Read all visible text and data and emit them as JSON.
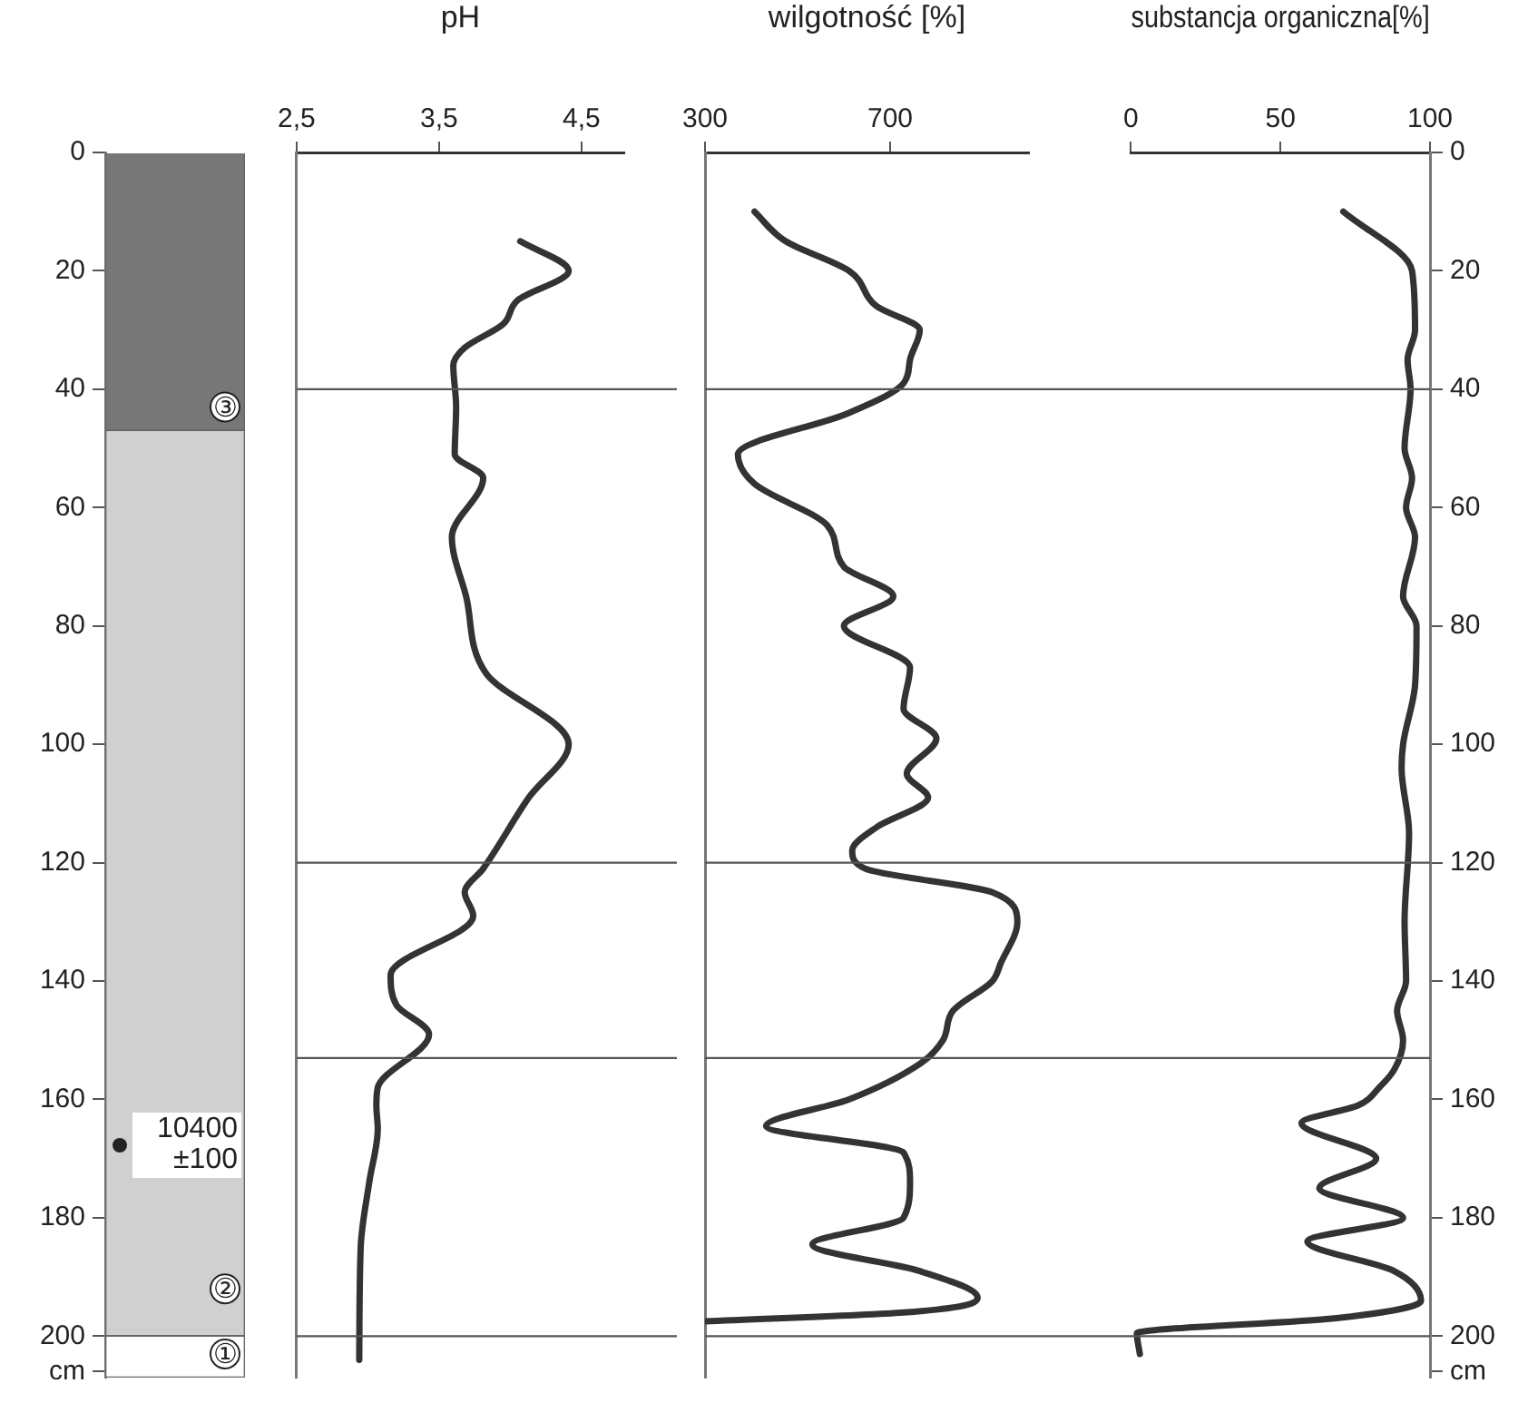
{
  "chart_data": [
    {
      "type": "bar",
      "stacked": true,
      "categories": [
        null
      ],
      "tick_labels": "y",
      "series": [
        {
          "color": "#777777",
          "values": [
            47
          ]
        },
        {
          "color": "#d0d0d0",
          "values": [
            153
          ]
        },
        {
          "color": "#ffffff",
          "values": [
            7
          ]
        }
      ],
      "ylim": [
        207,
        0
      ],
      "yticks": [
        0,
        20,
        40,
        60,
        80,
        100,
        120,
        140,
        160,
        180,
        200,
        {
          "value": 206,
          "label": "cm"
        }
      ],
      "annotations": [
        {
          "text": "③",
          "y": 43
        },
        "10400 ±100",
        {
          "text": "②",
          "y": 192
        },
        {
          "text": "①",
          "y": 203
        }
      ]
    },
    {
      "type": "line",
      "xlabel": "pH",
      "tick_labels": "x",
      "xlim": [
        2.5,
        4.8
      ],
      "xticks": [
        {
          "value": 2.5,
          "label": "2,5"
        },
        {
          "value": 3.5,
          "label": "3,5"
        },
        {
          "value": 4.5,
          "label": "4,5"
        }
      ],
      "ylim": [
        207,
        0
      ],
      "series": [
        {
          "color": "#333333",
          "x": [
            4.07,
            4.41,
            4.05,
            3.95,
            3.68,
            3.6,
            3.62,
            3.61,
            3.81,
            3.59,
            3.69,
            3.83,
            4.41,
            4.13,
            3.81,
            3.68,
            3.74,
            3.16,
            3.2,
            3.43,
            3.07,
            3.06,
            3.07,
            3.01,
            2.95,
            2.94
          ],
          "values": [
            15,
            20,
            25,
            29,
            33,
            36,
            43,
            51,
            55,
            65,
            75,
            88,
            100,
            109,
            121,
            125,
            129,
            139,
            144,
            149,
            158,
            161,
            165,
            174,
            185,
            204
          ]
        }
      ],
      "ref_lines": [
        {
          "axis": "y",
          "value": 40
        },
        {
          "axis": "y",
          "value": 120
        },
        {
          "axis": "y",
          "value": 153
        },
        {
          "axis": "y",
          "value": 200
        }
      ]
    },
    {
      "type": "line",
      "xlabel": "wilgotność [%]",
      "tick_labels": "x",
      "xlim": [
        300,
        1000
      ],
      "xticks": [
        300,
        700
      ],
      "ylim": [
        207,
        0
      ],
      "series": [
        {
          "color": "#333333",
          "x": [
            407,
            474,
            611,
            671,
            764,
            743,
            729,
            611,
            371,
            407,
            564,
            600,
            707,
            600,
            743,
            729,
            800,
            736,
            782,
            671,
            618,
            646,
            921,
            975,
            939,
            921,
            836,
            814,
            764,
            611,
            432,
            729,
            743,
            729,
            532,
            764,
            889,
            729,
            300
          ],
          "values": [
            10,
            15,
            20,
            26,
            30,
            35,
            39,
            44,
            51,
            56,
            63,
            70,
            75,
            80,
            87,
            94,
            99,
            105,
            109,
            114,
            118,
            121,
            125,
            130,
            137,
            140,
            145,
            150,
            154,
            160,
            164.5,
            169,
            174,
            180,
            184.5,
            189,
            193.5,
            196,
            197.5
          ]
        }
      ],
      "ref_lines": [
        {
          "axis": "y",
          "value": 40
        },
        {
          "axis": "y",
          "value": 120
        },
        {
          "axis": "y",
          "value": 153
        },
        {
          "axis": "y",
          "value": 200
        }
      ]
    },
    {
      "type": "line",
      "xlabel": "substancja organiczna[%]",
      "xlim": [
        0,
        100
      ],
      "xticks": [
        0,
        50,
        100
      ],
      "ylim": [
        207,
        0
      ],
      "yticks": [
        0,
        20,
        40,
        60,
        80,
        100,
        120,
        140,
        160,
        180,
        200,
        {
          "value": 206,
          "label": "cm"
        }
      ],
      "series": [
        {
          "color": "#333333",
          "x": [
            71,
            94,
            95,
            92.5,
            93.5,
            91.5,
            94,
            92,
            95,
            91,
            95.5,
            95,
            91,
            90.5,
            93,
            91.5,
            92,
            89,
            91,
            88,
            83,
            76,
            57,
            82,
            63,
            91,
            59,
            88,
            97,
            68,
            2,
            3
          ],
          "values": [
            10,
            20,
            30,
            35,
            40,
            50,
            55,
            60,
            65,
            75,
            80,
            90,
            100,
            104,
            115,
            130,
            140,
            145,
            150,
            155,
            158,
            161,
            164,
            170,
            175,
            180,
            184,
            189,
            194,
            197,
            199.5,
            203
          ]
        }
      ],
      "ref_lines": [
        {
          "axis": "y",
          "value": 40
        },
        {
          "axis": "y",
          "value": 120
        },
        {
          "axis": "y",
          "value": 153
        },
        {
          "axis": "y",
          "value": 200
        }
      ]
    }
  ]
}
